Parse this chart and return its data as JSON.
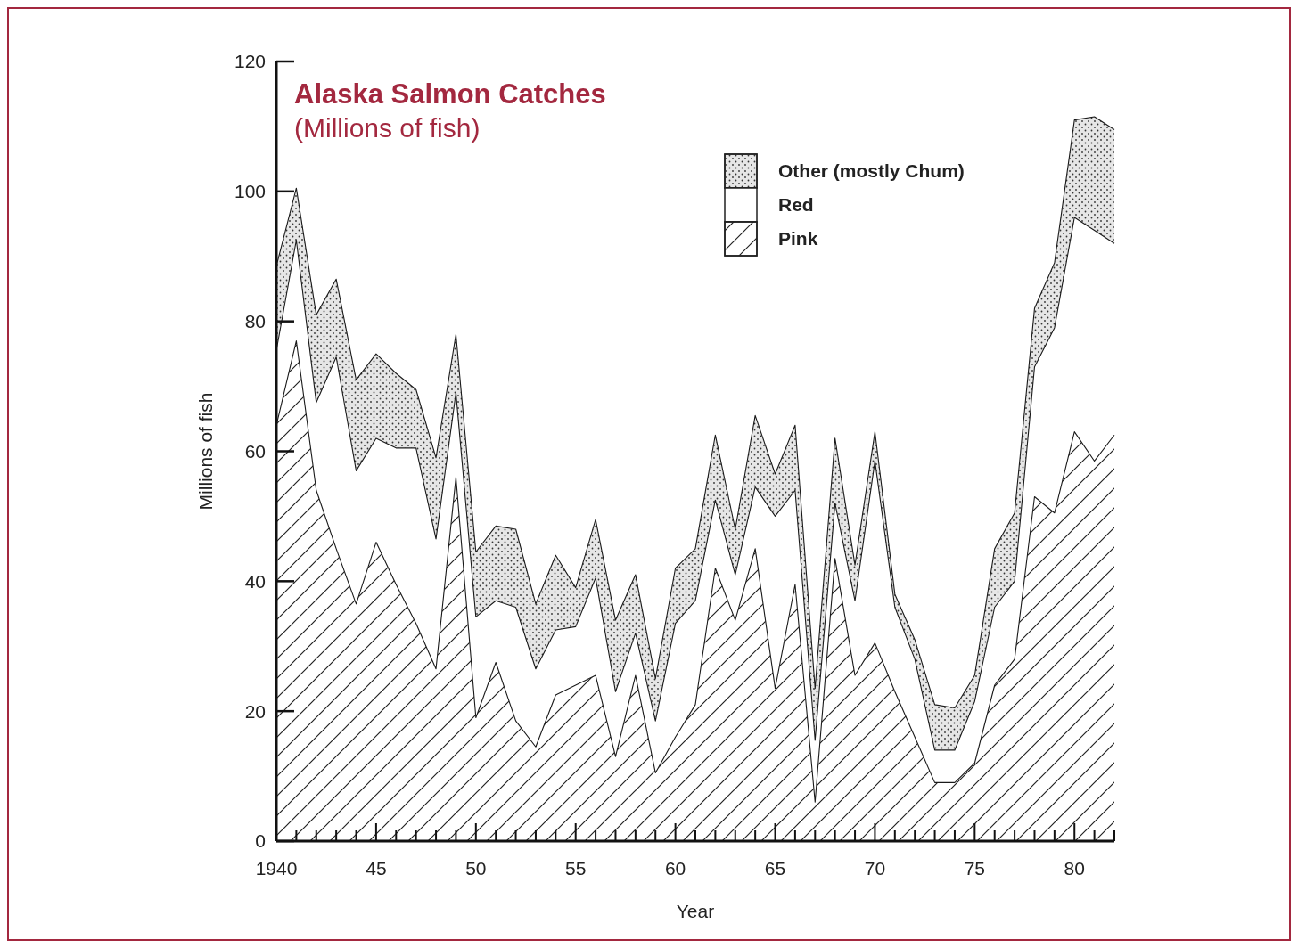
{
  "chart_data": {
    "type": "area",
    "stacked": true,
    "title": "Alaska Salmon Catches",
    "subtitle": "(Millions of fish)",
    "xlabel": "Year",
    "ylabel": "Millions of fish",
    "x": [
      1940,
      1941,
      1942,
      1943,
      1944,
      1945,
      1946,
      1947,
      1948,
      1949,
      1950,
      1951,
      1952,
      1953,
      1954,
      1955,
      1956,
      1957,
      1958,
      1959,
      1960,
      1961,
      1962,
      1963,
      1964,
      1965,
      1966,
      1967,
      1968,
      1969,
      1970,
      1971,
      1972,
      1973,
      1974,
      1975,
      1976,
      1977,
      1978,
      1979,
      1980,
      1981,
      1982
    ],
    "series": [
      {
        "name": "Pink",
        "color": "#ffffff",
        "values": [
          64,
          77,
          54,
          45,
          36.5,
          46,
          39.5,
          33.5,
          26.5,
          56,
          19,
          27.5,
          18.5,
          14.5,
          22.5,
          24,
          25.5,
          13,
          25.5,
          10.5,
          16,
          21,
          42,
          34,
          45,
          23.5,
          39.5,
          6,
          43.5,
          25.5,
          30.5,
          23,
          16,
          9,
          9,
          12,
          24,
          28,
          53,
          50.5,
          63,
          58.5,
          62.5
        ]
      },
      {
        "name": "Red",
        "color": "#ffffff",
        "values": [
          11.5,
          15.5,
          13.5,
          29.5,
          20.5,
          16,
          21,
          27,
          20,
          13,
          15.5,
          9.5,
          17.5,
          12,
          10,
          9,
          15,
          10,
          6.5,
          8,
          17.5,
          16,
          10.5,
          7,
          9.5,
          26.5,
          14.5,
          9.5,
          8.5,
          11.5,
          28,
          13,
          12,
          5,
          5,
          9.5,
          12,
          12,
          20,
          28.5,
          33,
          35.5,
          29.5
        ]
      },
      {
        "name": "Other (mostly Chum)",
        "color": "#e6e6e6",
        "values": [
          13,
          8,
          13.5,
          12,
          14,
          13,
          11.5,
          9,
          12.5,
          9,
          10,
          11.5,
          12,
          10,
          11.5,
          6,
          9,
          11,
          9,
          6.5,
          8.5,
          8,
          10,
          7,
          11,
          6.5,
          10,
          8,
          10,
          5.5,
          4.5,
          2,
          3,
          7,
          6.5,
          4,
          9,
          10.5,
          9,
          10,
          15,
          17.5,
          17.5
        ]
      }
    ],
    "xlim": [
      1940,
      1982
    ],
    "xticks": [
      1940,
      {
        "value": 1941,
        "label": null
      },
      {
        "value": 1942,
        "label": null
      },
      {
        "value": 1943,
        "label": null
      },
      {
        "value": 1944,
        "label": null
      },
      {
        "value": 1945,
        "label": "45"
      },
      {
        "value": 1946,
        "label": null
      },
      {
        "value": 1947,
        "label": null
      },
      {
        "value": 1948,
        "label": null
      },
      {
        "value": 1949,
        "label": null
      },
      {
        "value": 1950,
        "label": "50"
      },
      {
        "value": 1951,
        "label": null
      },
      {
        "value": 1952,
        "label": null
      },
      {
        "value": 1953,
        "label": null
      },
      {
        "value": 1954,
        "label": null
      },
      {
        "value": 1955,
        "label": "55"
      },
      {
        "value": 1956,
        "label": null
      },
      {
        "value": 1957,
        "label": null
      },
      {
        "value": 1958,
        "label": null
      },
      {
        "value": 1959,
        "label": null
      },
      {
        "value": 1960,
        "label": "60"
      },
      {
        "value": 1961,
        "label": null
      },
      {
        "value": 1962,
        "label": null
      },
      {
        "value": 1963,
        "label": null
      },
      {
        "value": 1964,
        "label": null
      },
      {
        "value": 1965,
        "label": "65"
      },
      {
        "value": 1966,
        "label": null
      },
      {
        "value": 1967,
        "label": null
      },
      {
        "value": 1968,
        "label": null
      },
      {
        "value": 1969,
        "label": null
      },
      {
        "value": 1970,
        "label": "70"
      },
      {
        "value": 1971,
        "label": null
      },
      {
        "value": 1972,
        "label": null
      },
      {
        "value": 1973,
        "label": null
      },
      {
        "value": 1974,
        "label": null
      },
      {
        "value": 1975,
        "label": "75"
      },
      {
        "value": 1976,
        "label": null
      },
      {
        "value": 1977,
        "label": null
      },
      {
        "value": 1978,
        "label": null
      },
      {
        "value": 1979,
        "label": null
      },
      {
        "value": 1980,
        "label": "80"
      },
      {
        "value": 1981,
        "label": null
      },
      {
        "value": 1982,
        "label": null
      }
    ],
    "ylim": [
      0,
      120
    ],
    "yticks": [
      0,
      20,
      40,
      60,
      80,
      100,
      120
    ],
    "grid": false,
    "legend": "top right"
  }
}
